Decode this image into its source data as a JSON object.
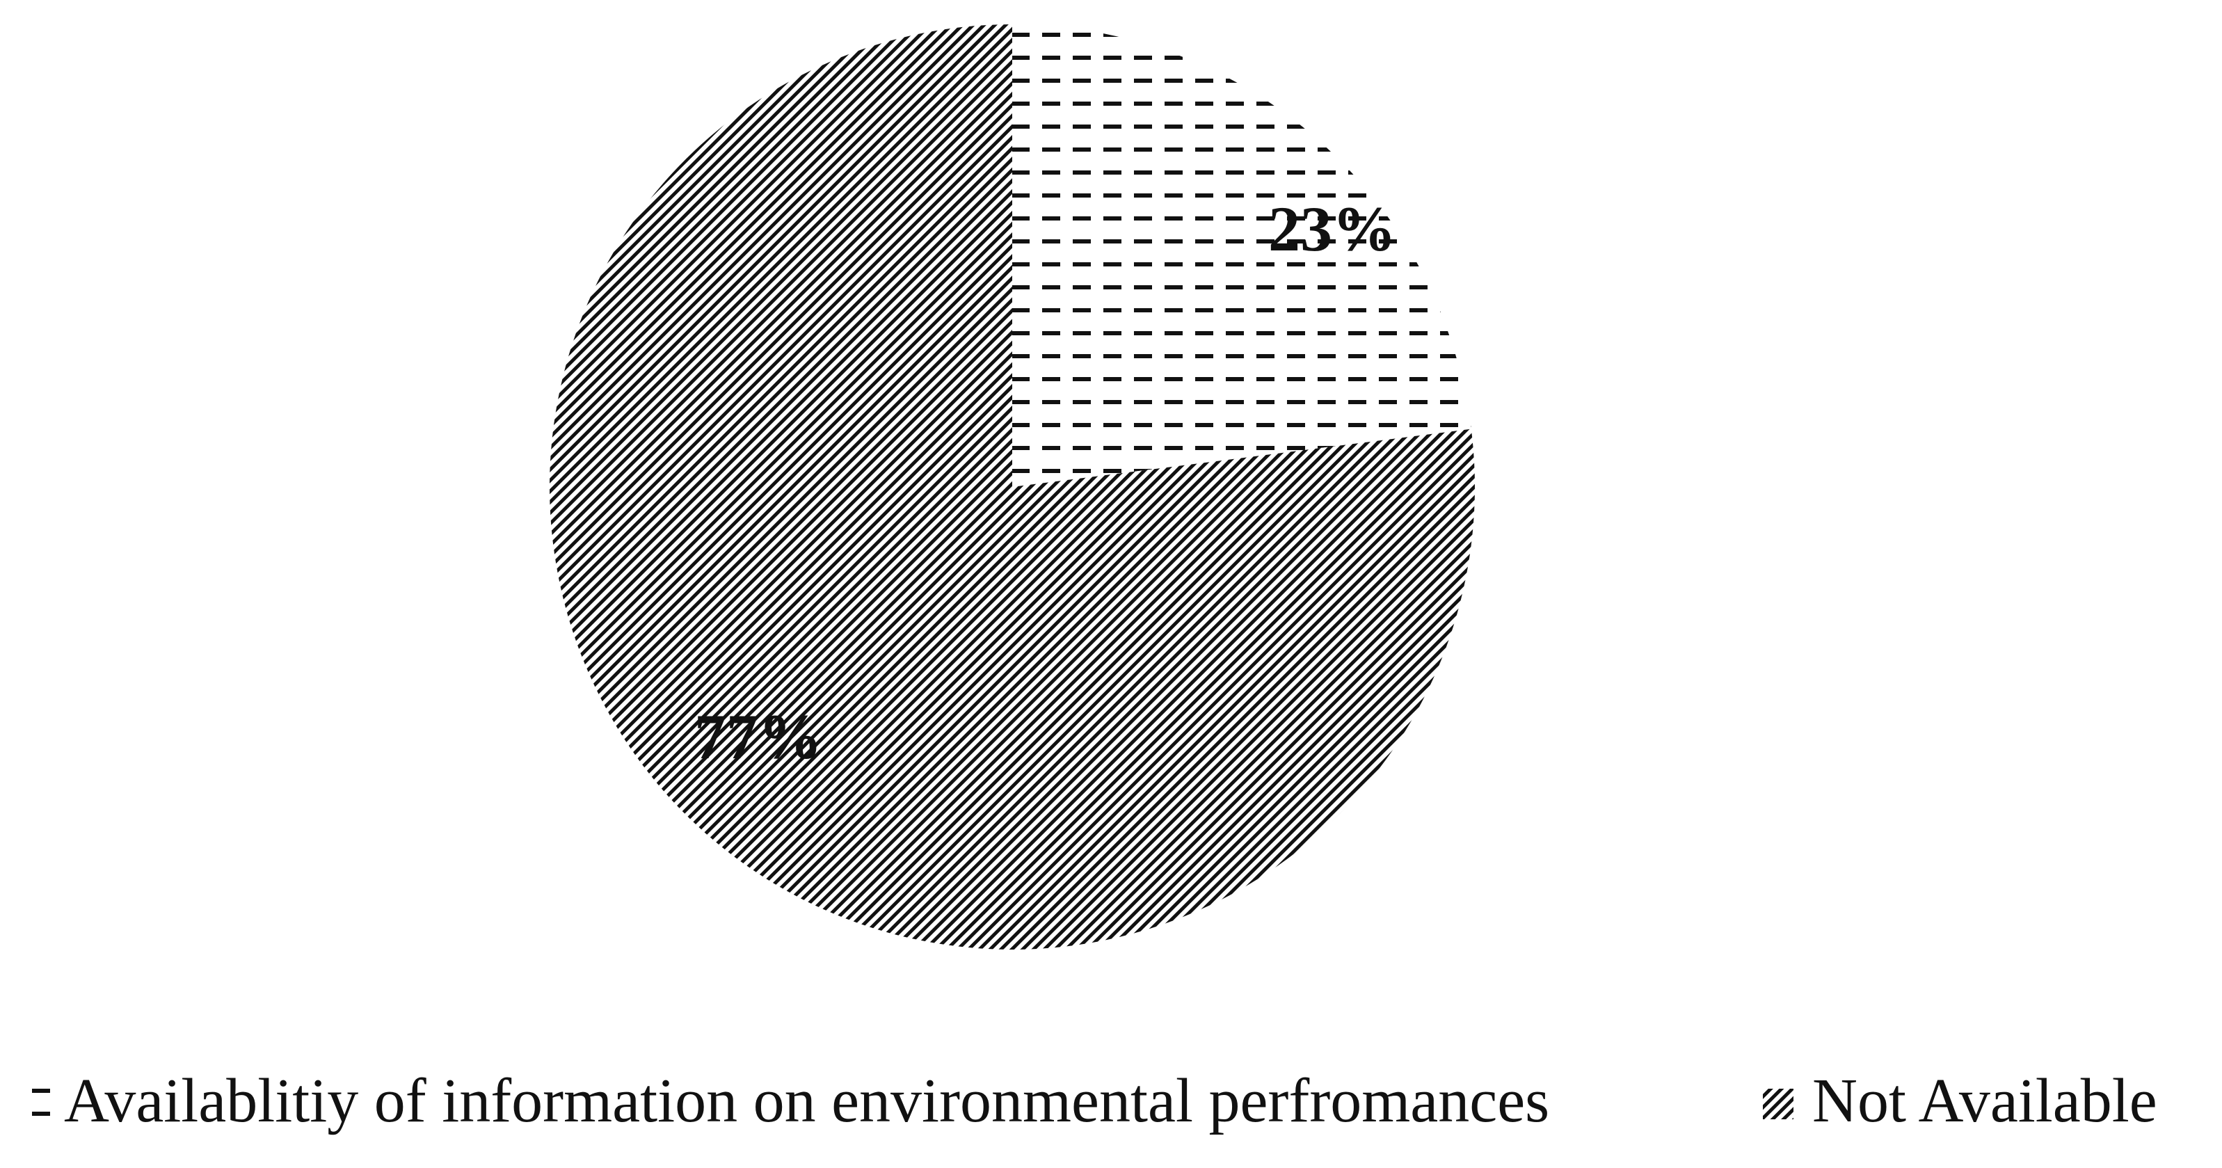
{
  "chart_data": {
    "type": "pie",
    "slices": [
      {
        "label": "Availablitiy of information on environmental perfromances",
        "value": 23,
        "value_label": "23%",
        "pattern": "dashes"
      },
      {
        "label": "Not Available",
        "value": 77,
        "value_label": "77%",
        "pattern": "diagonal-lines"
      }
    ],
    "start": "12 o'clock",
    "direction": "clockwise",
    "legend_position": "bottom",
    "colors": {
      "pattern_ink": "#111111",
      "background": "#ffffff"
    }
  }
}
